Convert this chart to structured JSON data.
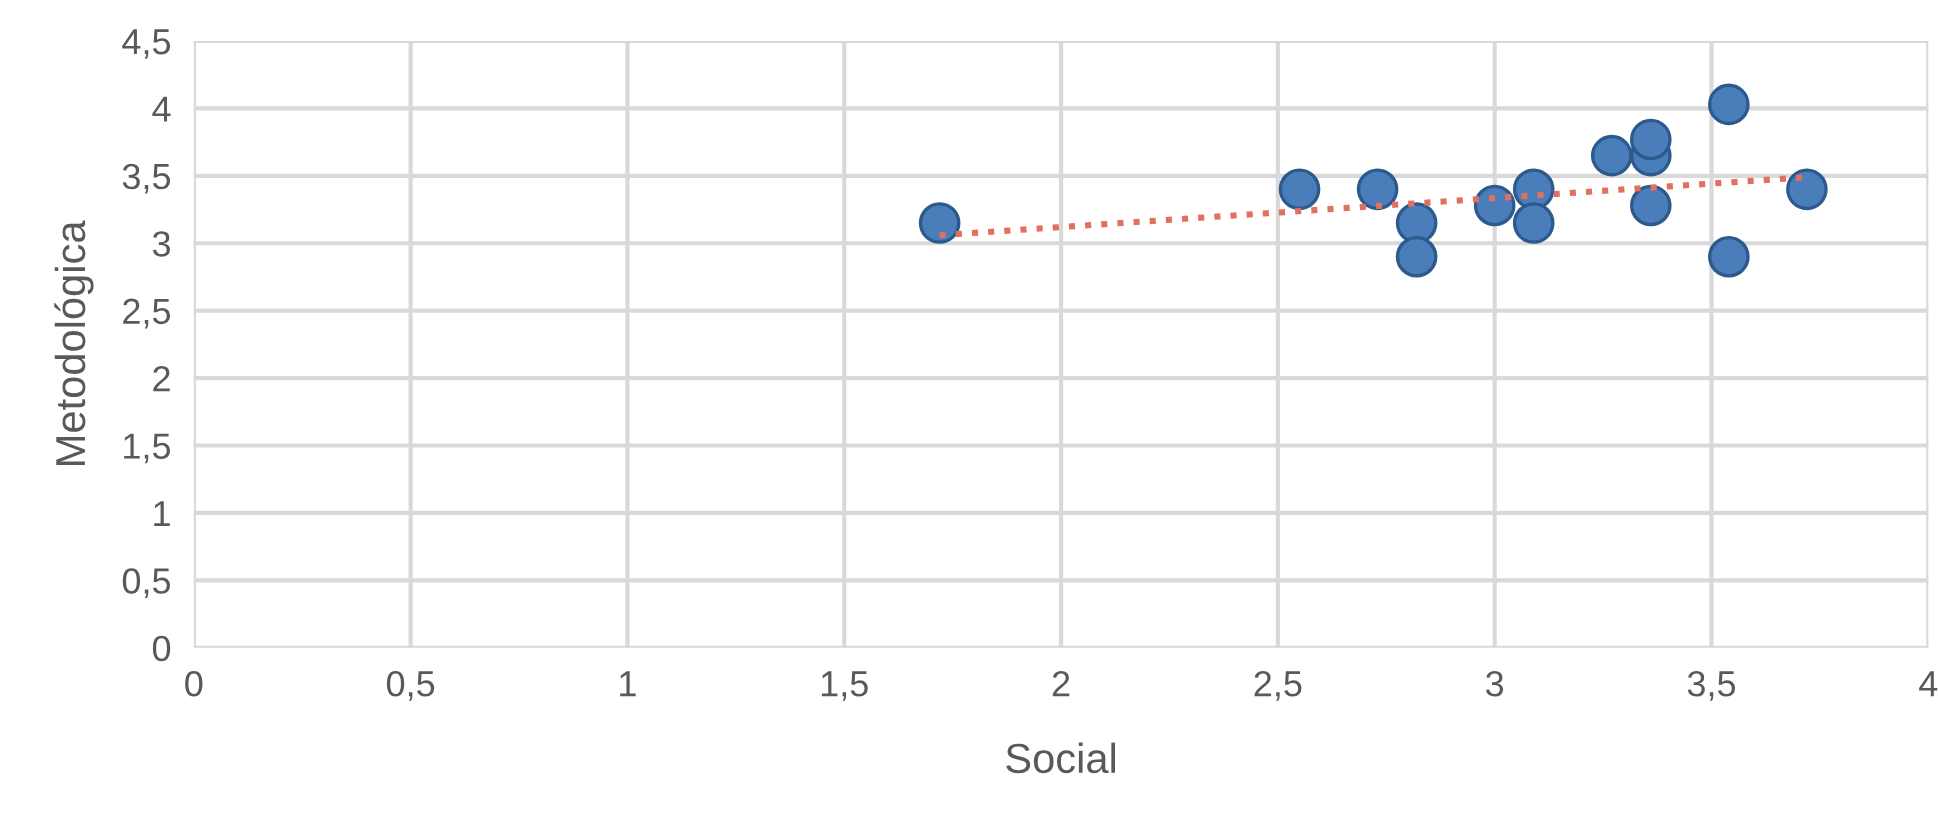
{
  "chart_data": {
    "type": "scatter",
    "xlabel": "Social",
    "ylabel": "Metodológica",
    "xlim": [
      0,
      4
    ],
    "ylim": [
      0,
      4.5
    ],
    "xticks": [
      {
        "value": 0,
        "label": "0"
      },
      {
        "value": 0.5,
        "label": "0,5"
      },
      {
        "value": 1,
        "label": "1"
      },
      {
        "value": 1.5,
        "label": "1,5"
      },
      {
        "value": 2,
        "label": "2"
      },
      {
        "value": 2.5,
        "label": "2,5"
      },
      {
        "value": 3,
        "label": "3"
      },
      {
        "value": 3.5,
        "label": "3,5"
      },
      {
        "value": 4,
        "label": "4"
      }
    ],
    "yticks": [
      {
        "value": 0,
        "label": "0"
      },
      {
        "value": 0.5,
        "label": "0,5"
      },
      {
        "value": 1,
        "label": "1"
      },
      {
        "value": 1.5,
        "label": "1,5"
      },
      {
        "value": 2,
        "label": "2"
      },
      {
        "value": 2.5,
        "label": "2,5"
      },
      {
        "value": 3,
        "label": "3"
      },
      {
        "value": 3.5,
        "label": "3,5"
      },
      {
        "value": 4,
        "label": "4"
      },
      {
        "value": 4.5,
        "label": "4,5"
      }
    ],
    "grid": true,
    "marker": "circle",
    "series": [
      {
        "color": "#4a7ebb",
        "x": [
          1.72,
          2.55,
          2.73,
          2.82,
          2.82,
          3.0,
          3.09,
          3.09,
          3.27,
          3.36,
          3.36,
          3.36,
          3.54,
          3.54,
          3.72
        ],
        "values": [
          3.15,
          3.4,
          3.4,
          3.15,
          2.9,
          3.28,
          3.4,
          3.15,
          3.65,
          3.65,
          3.77,
          3.28,
          4.03,
          2.9,
          3.4
        ]
      },
      {
        "type": "line",
        "color": "#e07060",
        "line_style": "dotted",
        "marker": "none",
        "x": [
          1.72,
          3.72
        ],
        "values": [
          3.06,
          3.49
        ]
      }
    ]
  }
}
